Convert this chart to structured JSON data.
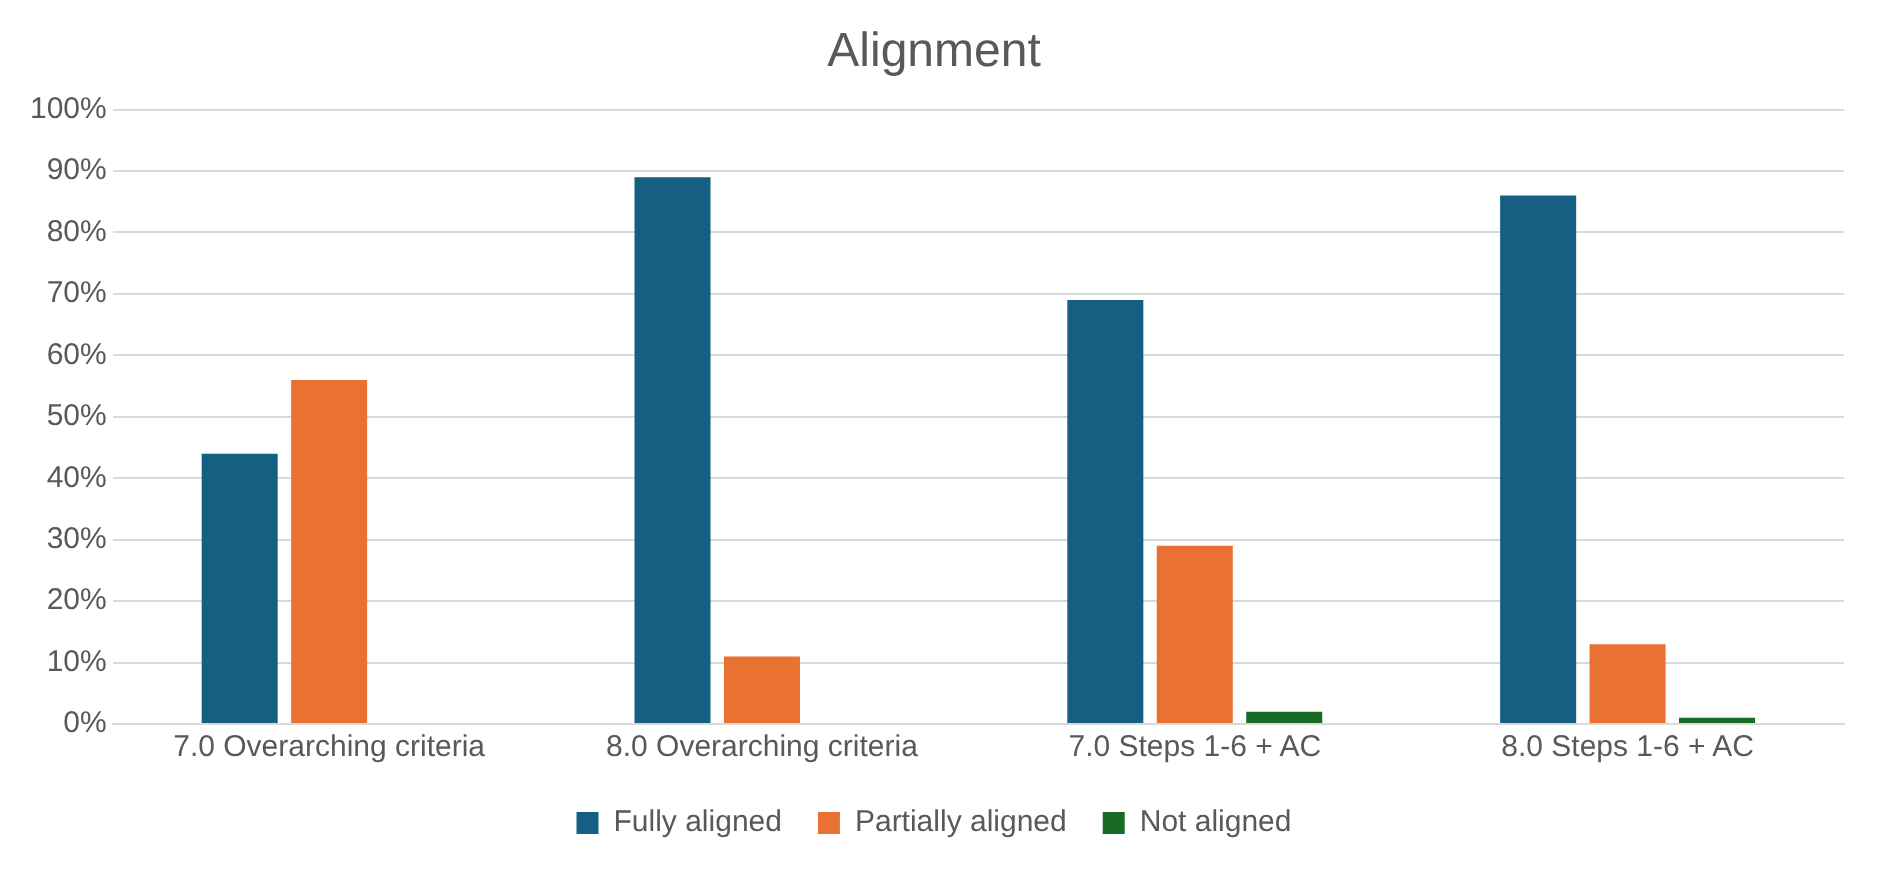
{
  "chart_data": {
    "type": "bar",
    "title": "Alignment",
    "categories": [
      "7.0 Overarching criteria",
      "8.0 Overarching criteria",
      "7.0 Steps 1-6 + AC",
      "8.0 Steps 1-6 + AC"
    ],
    "series": [
      {
        "name": "Fully aligned",
        "color": "#156082",
        "values": [
          44,
          89,
          69,
          86
        ]
      },
      {
        "name": "Partially aligned",
        "color": "#e97132",
        "values": [
          56,
          11,
          29,
          13
        ]
      },
      {
        "name": "Not aligned",
        "color": "#196b24",
        "values": [
          0,
          0,
          2,
          1
        ]
      }
    ],
    "ylim": [
      0,
      100
    ],
    "yticks": [
      {
        "value": 0,
        "label": "0%"
      },
      {
        "value": 10,
        "label": "10%"
      },
      {
        "value": 20,
        "label": "20%"
      },
      {
        "value": 30,
        "label": "30%"
      },
      {
        "value": 40,
        "label": "40%"
      },
      {
        "value": 50,
        "label": "50%"
      },
      {
        "value": 60,
        "label": "60%"
      },
      {
        "value": 70,
        "label": "70%"
      },
      {
        "value": 80,
        "label": "80%"
      },
      {
        "value": 90,
        "label": "90%"
      },
      {
        "value": 100,
        "label": "100%"
      }
    ],
    "grid": "y",
    "legend": "bottom"
  }
}
